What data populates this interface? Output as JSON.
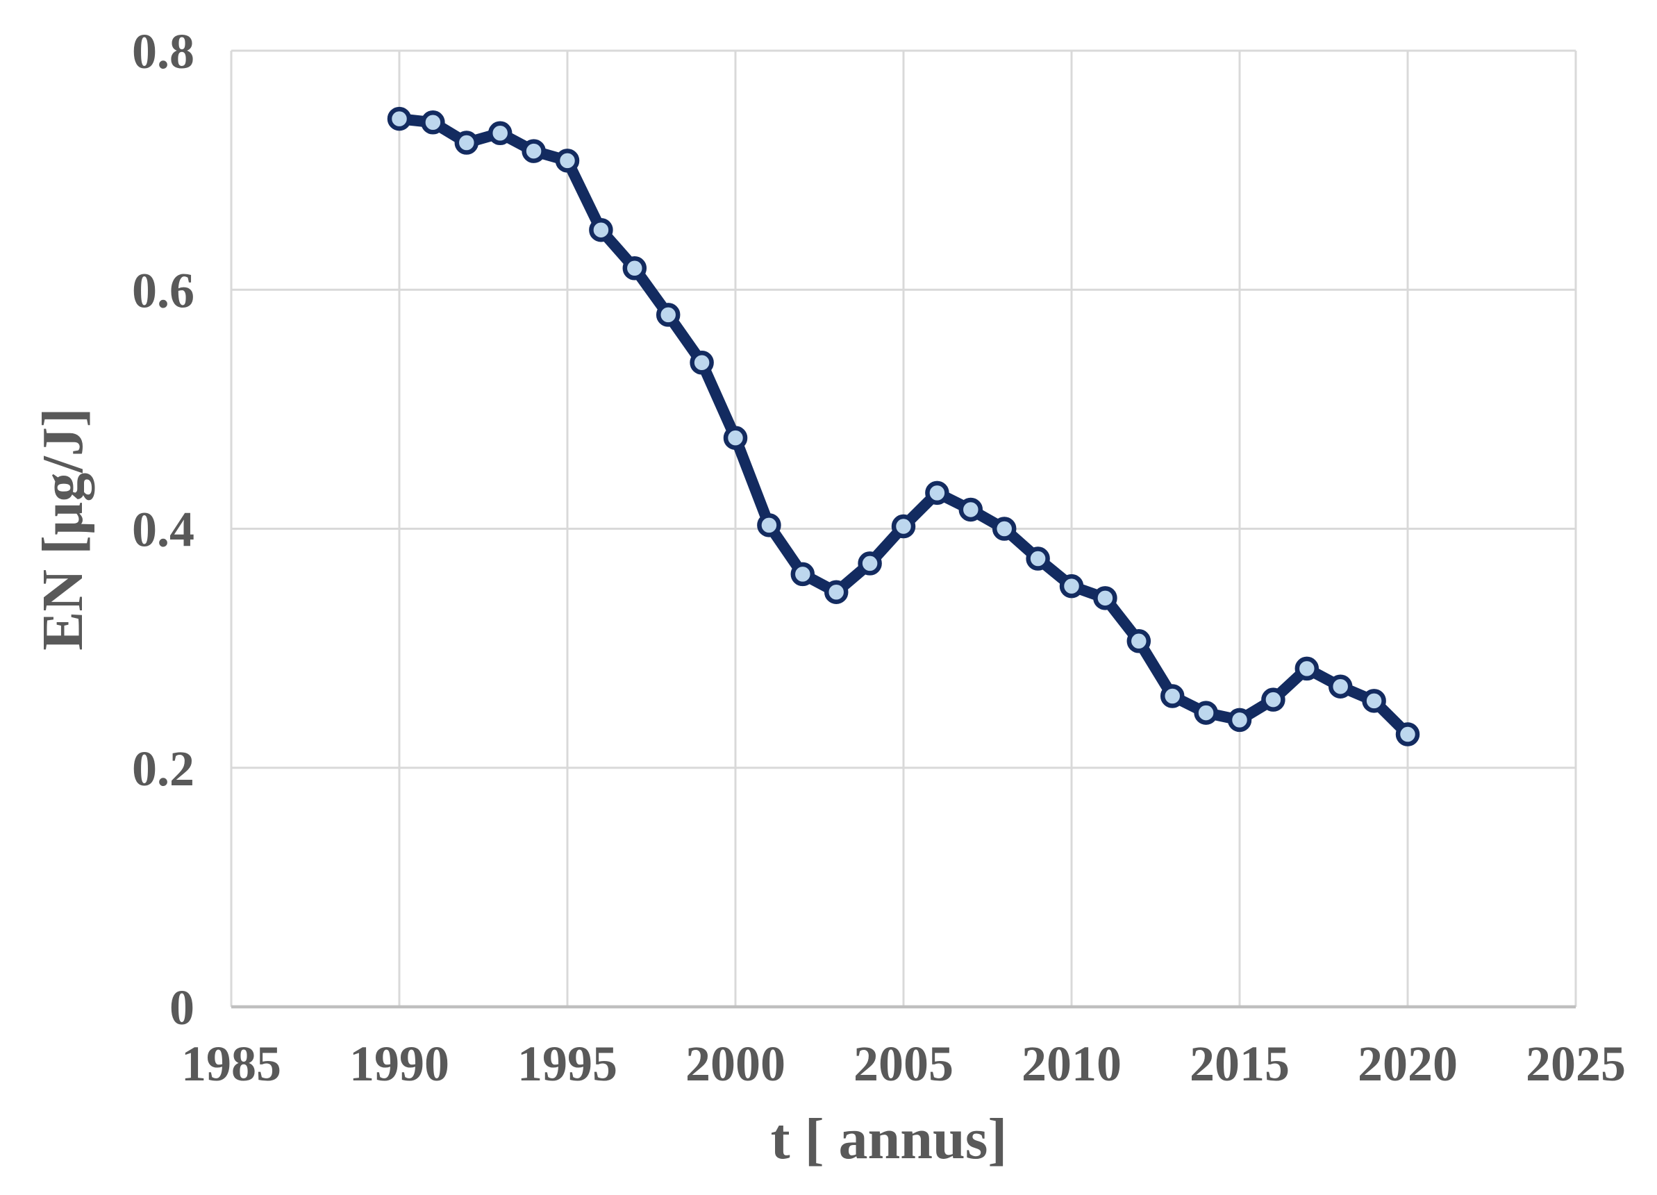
{
  "chart_data": {
    "type": "line",
    "title": "",
    "xlabel": "t [ annus]",
    "ylabel": "EN [µg/J]",
    "series": [
      {
        "name": "EN",
        "x": [
          1990,
          1991,
          1992,
          1993,
          1994,
          1995,
          1996,
          1997,
          1998,
          1999,
          2000,
          2001,
          2002,
          2003,
          2004,
          2005,
          2006,
          2007,
          2008,
          2009,
          2010,
          2011,
          2012,
          2013,
          2014,
          2015,
          2016,
          2017,
          2018,
          2019,
          2020
        ],
        "values": [
          0.743,
          0.74,
          0.723,
          0.731,
          0.716,
          0.708,
          0.65,
          0.618,
          0.579,
          0.539,
          0.476,
          0.403,
          0.362,
          0.347,
          0.371,
          0.402,
          0.43,
          0.416,
          0.4,
          0.375,
          0.352,
          0.342,
          0.306,
          0.26,
          0.246,
          0.24,
          0.257,
          0.283,
          0.268,
          0.256,
          0.228
        ]
      }
    ],
    "xlim": [
      1985,
      2025
    ],
    "ylim": [
      0,
      0.8
    ],
    "x_ticks": [
      1985,
      1990,
      1995,
      2000,
      2005,
      2010,
      2015,
      2020,
      2025
    ],
    "x_tick_labels": [
      "1985",
      "1990",
      "1995",
      "2000",
      "2005",
      "2010",
      "2015",
      "2020",
      "2025"
    ],
    "y_ticks": [
      0,
      0.2,
      0.4,
      0.6,
      0.8
    ],
    "y_tick_labels": [
      "0",
      "0.2",
      "0.4",
      "0.6",
      "0.8"
    ],
    "grid": true,
    "legend_position": "none",
    "marker": "circle",
    "colors": {
      "line": "#132b60",
      "marker_fill": "#bdd7ee",
      "marker_stroke": "#132b60",
      "gridline": "#d9d9d9",
      "axis_line": "#bfbfbf",
      "text": "#595959",
      "background": "#ffffff"
    }
  }
}
